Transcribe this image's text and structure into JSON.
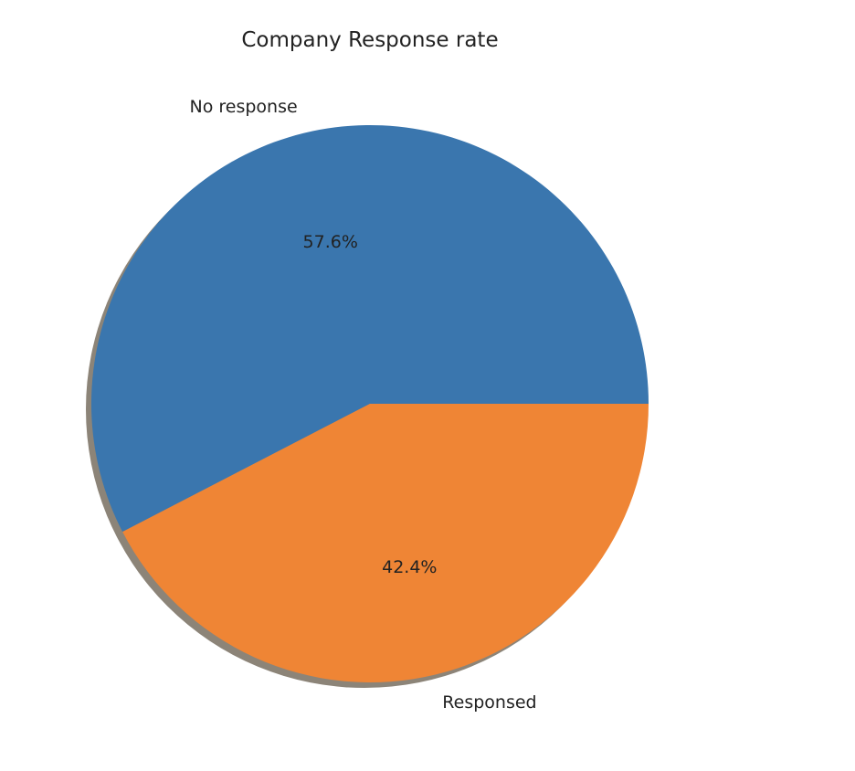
{
  "chart_data": {
    "type": "pie",
    "title": "Company Response rate",
    "slices": [
      {
        "label": "No response",
        "value": 57.6,
        "pct_label": "57.6%",
        "color": "#3a76ae"
      },
      {
        "label": "Responsed",
        "value": 42.4,
        "pct_label": "42.4%",
        "color": "#ef8535"
      }
    ],
    "start_angle_deg": 0,
    "direction": "counterclockwise",
    "shadow": true,
    "shadow_color": "#8c8478"
  }
}
